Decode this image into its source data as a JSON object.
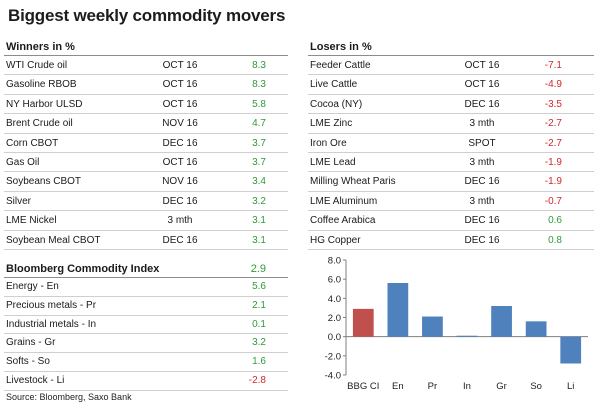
{
  "title": "Biggest weekly commodity movers",
  "winners": {
    "header": "Winners in %",
    "rows": [
      {
        "name": "WTI Crude oil",
        "contract": "OCT 16",
        "value": "8.3"
      },
      {
        "name": "Gasoline RBOB",
        "contract": "OCT 16",
        "value": "8.3"
      },
      {
        "name": "NY Harbor ULSD",
        "contract": "OCT 16",
        "value": "5.8"
      },
      {
        "name": "Brent Crude oil",
        "contract": "NOV 16",
        "value": "4.7"
      },
      {
        "name": "Corn CBOT",
        "contract": "DEC 16",
        "value": "3.7"
      },
      {
        "name": "Gas Oil",
        "contract": "OCT 16",
        "value": "3.7"
      },
      {
        "name": "Soybeans CBOT",
        "contract": "NOV 16",
        "value": "3.4"
      },
      {
        "name": "Silver",
        "contract": "DEC 16",
        "value": "3.2"
      },
      {
        "name": "LME Nickel",
        "contract": "3 mth",
        "value": "3.1"
      },
      {
        "name": "Soybean Meal CBOT",
        "contract": "DEC 16",
        "value": "3.1"
      }
    ]
  },
  "losers": {
    "header": "Losers in %",
    "rows": [
      {
        "name": "Feeder Cattle",
        "contract": "OCT 16",
        "value": "-7.1"
      },
      {
        "name": "Live Cattle",
        "contract": "OCT 16",
        "value": "-4.9"
      },
      {
        "name": "Cocoa (NY)",
        "contract": "DEC 16",
        "value": "-3.5"
      },
      {
        "name": "LME Zinc",
        "contract": "3 mth",
        "value": "-2.7"
      },
      {
        "name": "Iron Ore",
        "contract": "SPOT",
        "value": "-2.7"
      },
      {
        "name": "LME Lead",
        "contract": "3 mth",
        "value": "-1.9"
      },
      {
        "name": "Milling Wheat Paris",
        "contract": "DEC 16",
        "value": "-1.9"
      },
      {
        "name": "LME Aluminum",
        "contract": "3 mth",
        "value": "-0.7"
      },
      {
        "name": "Coffee Arabica",
        "contract": "DEC 16",
        "value": "0.6"
      },
      {
        "name": "HG Copper",
        "contract": "DEC 16",
        "value": "0.8"
      }
    ]
  },
  "index": {
    "header": "Bloomberg Commodity Index",
    "header_value": "2.9",
    "rows": [
      {
        "name": "Energy - En",
        "value": "5.6"
      },
      {
        "name": "Precious metals - Pr",
        "value": "2.1"
      },
      {
        "name": "Industrial metals - In",
        "value": "0.1"
      },
      {
        "name": "Grains - Gr",
        "value": "3.2"
      },
      {
        "name": "Softs - So",
        "value": "1.6"
      },
      {
        "name": "Livestock - Li",
        "value": "-2.8"
      }
    ]
  },
  "source": "Source: Bloomberg, Saxo Bank",
  "colors": {
    "positive": "#2f9a3a",
    "negative": "#d3272b",
    "bar_index": "#c0504d",
    "bar_sector": "#4f81bd"
  },
  "chart_data": {
    "type": "bar",
    "categories": [
      "BBG CI",
      "En",
      "Pr",
      "In",
      "Gr",
      "So",
      "Li"
    ],
    "values": [
      2.9,
      5.6,
      2.1,
      0.1,
      3.2,
      1.6,
      -2.8
    ],
    "ylim": [
      -4.0,
      8.0
    ],
    "yticks": [
      "8.0",
      "6.0",
      "4.0",
      "2.0",
      "0.0",
      "-2.0",
      "-4.0"
    ],
    "grid": false,
    "legend": "none",
    "title": "",
    "xlabel": "",
    "ylabel": ""
  }
}
